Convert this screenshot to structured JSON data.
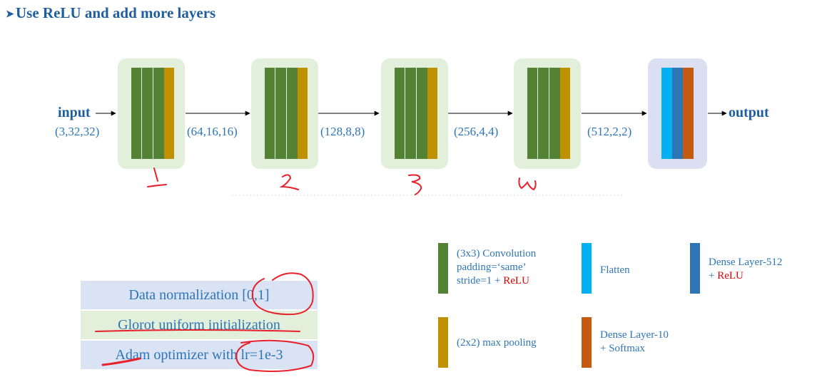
{
  "title": "Use ReLU and add more layers",
  "colors": {
    "conv": "#548235",
    "pool": "#BF9000",
    "flatten": "#00B0F0",
    "dense512": "#2E75B6",
    "dense10": "#C55A11",
    "text": "#2E75B6",
    "accent_red": "#E00000",
    "annotation_ink": "#E8202A"
  },
  "diagram": {
    "input_label": "input",
    "input_shape": "(3,32,32)",
    "output_label": "output",
    "shapes": [
      "(64,16,16)",
      "(128,8,8)",
      "(256,4,4)",
      "(512,2,2)"
    ],
    "block_numbers": [
      "1",
      "2",
      "3",
      "4"
    ]
  },
  "legend": {
    "conv": {
      "line1": "(3x3) Convolution",
      "line2": "padding=‘same’",
      "line3": "stride=1 + ",
      "relu": "ReLU"
    },
    "flatten": {
      "text": "Flatten"
    },
    "dense512": {
      "line1": "Dense Layer-512",
      "line2": "+ ",
      "relu": "ReLU"
    },
    "pool": {
      "text": "(2x2) max pooling"
    },
    "dense10": {
      "line1": "Dense Layer-10",
      "line2": "+ Softmax"
    }
  },
  "settings": [
    "Data normalization [0,1]",
    "Glorot uniform initialization",
    "Adam optimizer with lr=1e-3"
  ]
}
